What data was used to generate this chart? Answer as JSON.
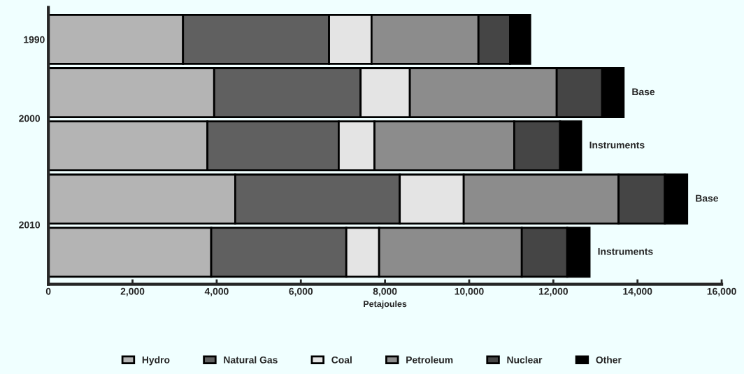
{
  "chart_data": {
    "type": "bar",
    "orientation": "horizontal",
    "stacked": true,
    "categories": [
      "1990",
      null,
      null,
      null,
      null
    ],
    "series": [
      {
        "name": "Hydro",
        "color": "#b4b4b4",
        "values": [
          3200,
          3940,
          3780,
          4440,
          3870
        ]
      },
      {
        "name": "Natural Gas",
        "color": "#606060",
        "values": [
          3470,
          3480,
          3120,
          3910,
          3210
        ]
      },
      {
        "name": "Coal",
        "color": "#e4e4e4",
        "values": [
          1010,
          1170,
          850,
          1520,
          780
        ]
      },
      {
        "name": "Petroleum",
        "color": "#8c8c8c",
        "values": [
          2540,
          3490,
          3320,
          3680,
          3390
        ]
      },
      {
        "name": "Nuclear",
        "color": "#454545",
        "values": [
          750,
          1080,
          1090,
          1100,
          1080
        ]
      },
      {
        "name": "Other",
        "color": "#000000",
        "values": [
          480,
          510,
          500,
          530,
          530
        ]
      }
    ],
    "xlabel": "Petajoules",
    "xlim": [
      0,
      16000
    ],
    "xticks": [
      {
        "value": 0,
        "label": "0"
      },
      {
        "value": 2000,
        "label": "2,000"
      },
      {
        "value": 4000,
        "label": "4,000"
      },
      {
        "value": 6000,
        "label": "6,000"
      },
      {
        "value": 8000,
        "label": "8,000"
      },
      {
        "value": 10000,
        "label": "10,000"
      },
      {
        "value": 12000,
        "label": "12,000"
      },
      {
        "value": 14000,
        "label": "14,000"
      },
      {
        "value": 16000,
        "label": "16,000"
      }
    ],
    "annotations": [
      "2000",
      "Base",
      "Instruments",
      "2010",
      "Base",
      "Instruments"
    ],
    "legend": "bottom",
    "grid": false
  }
}
